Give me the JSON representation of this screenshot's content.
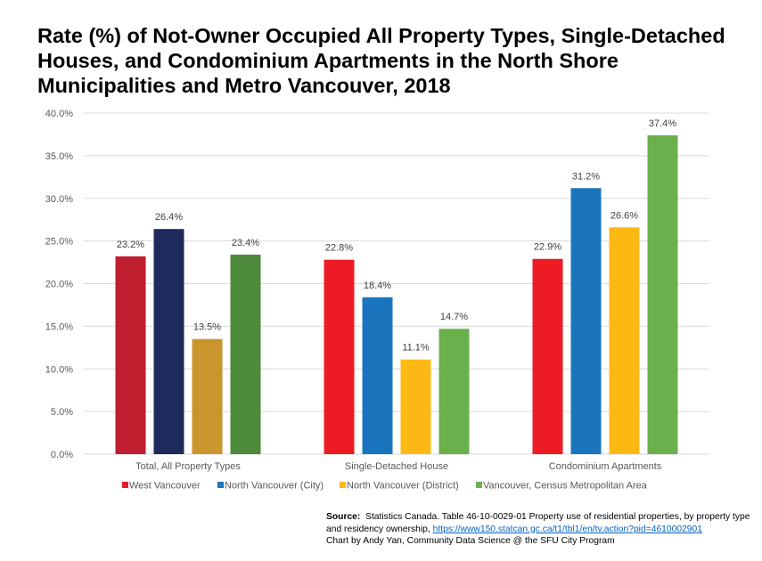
{
  "chart_data": {
    "type": "bar",
    "title": "Rate (%) of Not-Owner Occupied All Property Types, Single-Detached Houses, and Condominium Apartments in the North Shore Municipalities and Metro Vancouver, 2018",
    "categories": [
      "Total, All Property Types",
      "Single-Detached House",
      "Condominium Apartments"
    ],
    "series": [
      {
        "name": "West Vancouver",
        "legend_color": "#e21f26",
        "colors": [
          "#be1e2d",
          "#ed1c24",
          "#ed1c24"
        ],
        "values": [
          23.2,
          22.8,
          22.9
        ],
        "labels": [
          "23.2%",
          "22.8%",
          "22.9%"
        ]
      },
      {
        "name": "North Vancouver (City)",
        "legend_color": "#1b75bc",
        "colors": [
          "#1f2a5c",
          "#1b75bc",
          "#1b75bc"
        ],
        "values": [
          26.4,
          18.4,
          31.2
        ],
        "labels": [
          "26.4%",
          "18.4%",
          "31.2%"
        ]
      },
      {
        "name": "North Vancouver (District)",
        "legend_color": "#fdb913",
        "colors": [
          "#c9952c",
          "#fdb913",
          "#fdb913"
        ],
        "values": [
          13.5,
          11.1,
          26.6
        ],
        "labels": [
          "13.5%",
          "11.1%",
          "26.6%"
        ]
      },
      {
        "name": "Vancouver, Census Metropolitan Area",
        "legend_color": "#6ab04c",
        "colors": [
          "#4e8a3b",
          "#6ab04c",
          "#6ab04c"
        ],
        "values": [
          23.4,
          14.7,
          37.4
        ],
        "labels": [
          "23.4%",
          "14.7%",
          "37.4%"
        ]
      }
    ],
    "ylim": [
      0,
      40
    ],
    "yticks": [
      "0.0%",
      "5.0%",
      "10.0%",
      "15.0%",
      "20.0%",
      "25.0%",
      "30.0%",
      "35.0%",
      "40.0%"
    ],
    "ytick_values": [
      0,
      5,
      10,
      15,
      20,
      25,
      30,
      35,
      40
    ],
    "grid": true,
    "legend_position": "bottom"
  },
  "source": {
    "label": "Source:",
    "text_before_link": "Statistics Canada. Table 46-10-0029-01 Property use of residential properties, by property type and residency ownership,",
    "link": "https://www150.statcan.gc.ca/t1/tbl1/en/tv.action?pid=4610002901",
    "credit": "Chart by Andy Yan, Community Data Science @ the SFU City Program"
  },
  "colors": {
    "grid": "#d9d9d9",
    "axis_text": "#595959"
  }
}
